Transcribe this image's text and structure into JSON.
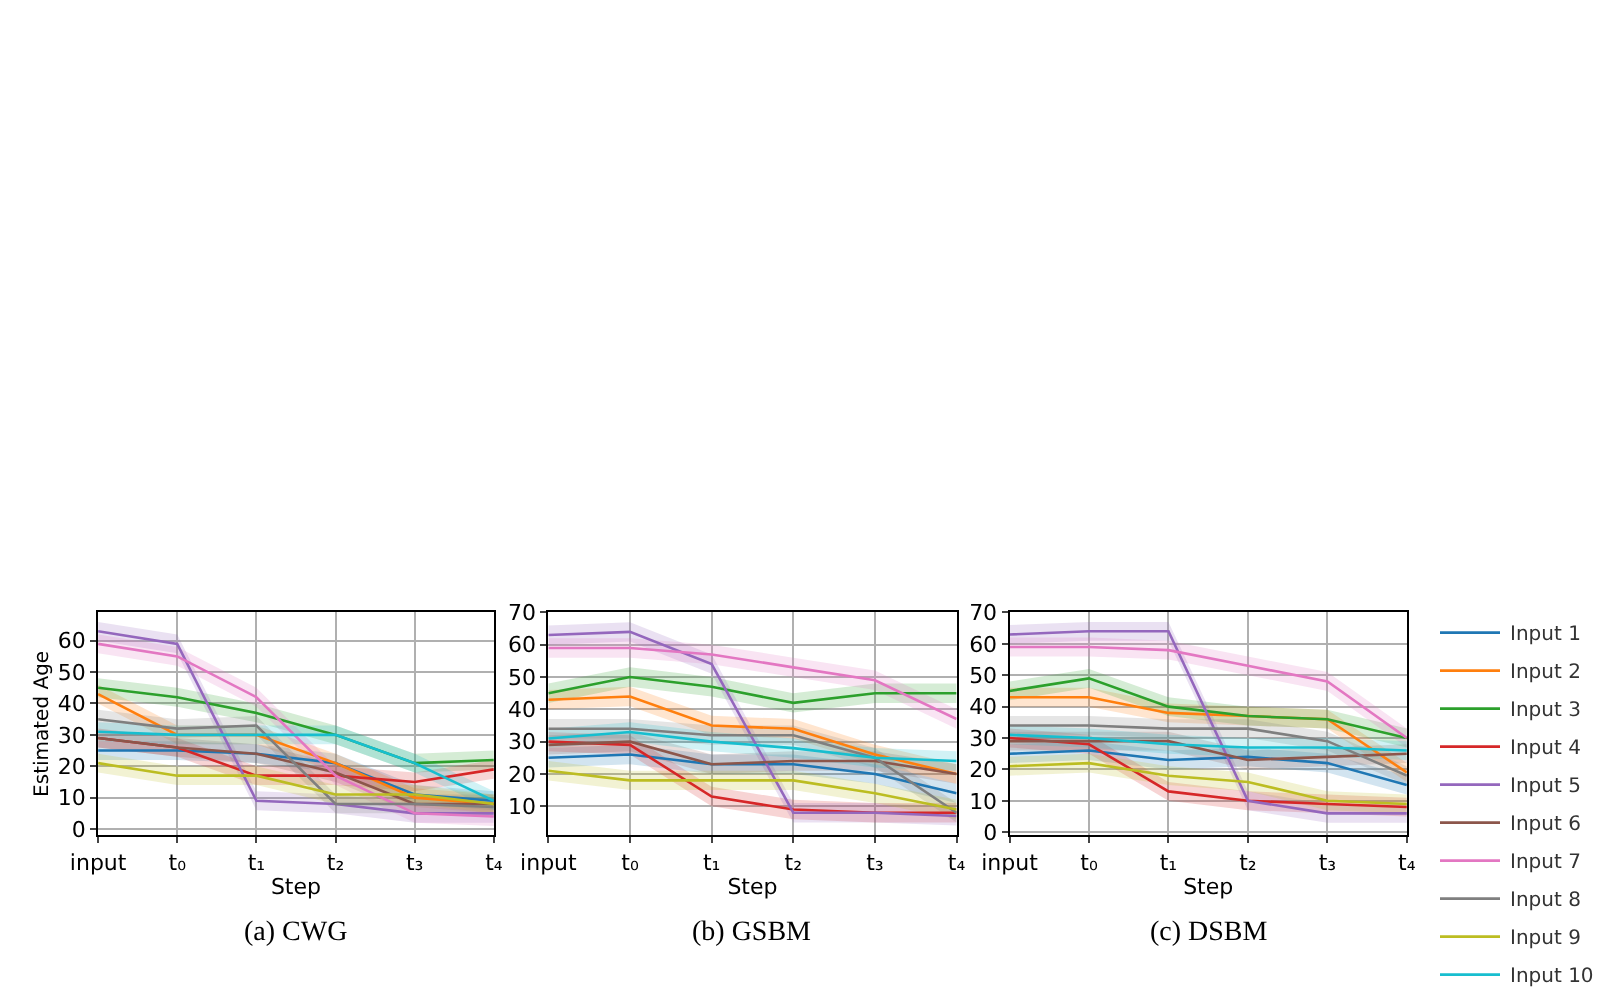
{
  "chart_data": [
    {
      "type": "line",
      "title": "(a) CWG",
      "xlabel": "Step",
      "ylabel": "Estimated Age",
      "categories": [
        "input",
        "t₀",
        "t₁",
        "t₂",
        "t₃",
        "t₄"
      ],
      "ylim": [
        -2,
        69
      ],
      "yticks": [
        0,
        10,
        20,
        30,
        40,
        50,
        60
      ],
      "grid": true,
      "legend": "right",
      "marker": "none",
      "line_style": "solid",
      "series": [
        {
          "name": "Input 1",
          "color": "#1f77b4",
          "values": [
            25,
            25,
            24,
            21,
            11,
            9
          ],
          "lower": [
            22,
            22,
            21,
            18,
            8,
            6
          ],
          "upper": [
            28,
            28,
            27,
            24,
            14,
            12
          ]
        },
        {
          "name": "Input 2",
          "color": "#ff7f0e",
          "values": [
            43,
            30,
            30,
            21,
            10,
            8
          ],
          "lower": [
            40,
            27,
            27,
            18,
            7,
            5
          ],
          "upper": [
            46,
            33,
            33,
            24,
            13,
            11
          ]
        },
        {
          "name": "Input 3",
          "color": "#2ca02c",
          "values": [
            45,
            42,
            37,
            30,
            21,
            22
          ],
          "lower": [
            42,
            39,
            34,
            27,
            18,
            19
          ],
          "upper": [
            48,
            45,
            40,
            33,
            24,
            25
          ]
        },
        {
          "name": "Input 4",
          "color": "#d62728",
          "values": [
            29,
            26,
            17,
            17,
            15,
            19
          ],
          "lower": [
            26,
            23,
            14,
            14,
            12,
            16
          ],
          "upper": [
            32,
            29,
            20,
            20,
            18,
            22
          ]
        },
        {
          "name": "Input 5",
          "color": "#9467bd",
          "values": [
            63,
            59,
            9,
            8,
            5,
            5
          ],
          "lower": [
            60,
            56,
            6,
            5,
            2,
            2
          ],
          "upper": [
            66,
            62,
            12,
            11,
            8,
            8
          ]
        },
        {
          "name": "Input 6",
          "color": "#8c564b",
          "values": [
            29,
            26,
            24,
            18,
            8,
            8
          ],
          "lower": [
            26,
            23,
            21,
            15,
            5,
            5
          ],
          "upper": [
            32,
            29,
            27,
            21,
            11,
            11
          ]
        },
        {
          "name": "Input 7",
          "color": "#e377c2",
          "values": [
            59,
            55,
            42,
            17,
            5,
            4
          ],
          "lower": [
            56,
            52,
            39,
            14,
            2,
            1
          ],
          "upper": [
            62,
            58,
            45,
            20,
            8,
            7
          ]
        },
        {
          "name": "Input 8",
          "color": "#7f7f7f",
          "values": [
            35,
            32,
            33,
            8,
            8,
            7
          ],
          "lower": [
            32,
            29,
            30,
            5,
            5,
            4
          ],
          "upper": [
            38,
            35,
            36,
            11,
            11,
            10
          ]
        },
        {
          "name": "Input 9",
          "color": "#bcbd22",
          "values": [
            21,
            17,
            17,
            11,
            11,
            8
          ],
          "lower": [
            18,
            14,
            14,
            8,
            8,
            5
          ],
          "upper": [
            24,
            20,
            20,
            14,
            14,
            11
          ]
        },
        {
          "name": "Input 10",
          "color": "#17becf",
          "values": [
            31,
            30,
            30,
            30,
            21,
            9
          ],
          "lower": [
            28,
            27,
            27,
            27,
            18,
            6
          ],
          "upper": [
            34,
            33,
            33,
            33,
            24,
            12
          ]
        }
      ]
    },
    {
      "type": "line",
      "title": "(b) GSBM",
      "xlabel": "Step",
      "categories": [
        "input",
        "t₀",
        "t₁",
        "t₂",
        "t₃",
        "t₄"
      ],
      "ylim": [
        1,
        70
      ],
      "yticks": [
        10,
        20,
        30,
        40,
        50,
        60,
        70
      ],
      "grid": true,
      "legend": false,
      "marker": "none",
      "line_style": "solid",
      "series": [
        {
          "color": "#1f77b4",
          "values": [
            25,
            26,
            23,
            23,
            20,
            14
          ],
          "lower": [
            22,
            23,
            20,
            20,
            17,
            11
          ],
          "upper": [
            28,
            29,
            26,
            26,
            23,
            17
          ]
        },
        {
          "color": "#ff7f0e",
          "values": [
            43,
            44,
            35,
            34,
            26,
            20
          ],
          "lower": [
            40,
            41,
            32,
            31,
            23,
            17
          ],
          "upper": [
            46,
            47,
            38,
            37,
            29,
            23
          ]
        },
        {
          "color": "#2ca02c",
          "values": [
            45,
            50,
            47,
            42,
            45,
            45
          ],
          "lower": [
            42,
            47,
            44,
            39,
            42,
            42
          ],
          "upper": [
            48,
            53,
            50,
            45,
            48,
            48
          ]
        },
        {
          "color": "#d62728",
          "values": [
            30,
            29,
            13,
            9,
            8,
            8
          ],
          "lower": [
            27,
            26,
            10,
            6,
            5,
            5
          ],
          "upper": [
            33,
            32,
            16,
            12,
            11,
            11
          ]
        },
        {
          "color": "#9467bd",
          "values": [
            63,
            64,
            54,
            8,
            8,
            7
          ],
          "lower": [
            60,
            61,
            51,
            5,
            5,
            4
          ],
          "upper": [
            66,
            67,
            57,
            11,
            11,
            10
          ]
        },
        {
          "color": "#8c564b",
          "values": [
            29,
            30,
            23,
            24,
            24,
            20
          ],
          "lower": [
            26,
            27,
            20,
            21,
            21,
            17
          ],
          "upper": [
            32,
            33,
            26,
            27,
            27,
            23
          ]
        },
        {
          "color": "#e377c2",
          "values": [
            59,
            59,
            57,
            53,
            49,
            37
          ],
          "lower": [
            56,
            56,
            54,
            50,
            46,
            34
          ],
          "upper": [
            62,
            62,
            60,
            56,
            52,
            40
          ]
        },
        {
          "color": "#7f7f7f",
          "values": [
            34,
            34,
            32,
            32,
            25,
            8
          ],
          "lower": [
            31,
            31,
            29,
            29,
            22,
            5
          ],
          "upper": [
            37,
            37,
            35,
            35,
            28,
            11
          ]
        },
        {
          "color": "#bcbd22",
          "values": [
            21,
            18,
            18,
            18,
            14,
            9
          ],
          "lower": [
            18,
            15,
            15,
            15,
            11,
            6
          ],
          "upper": [
            24,
            21,
            21,
            21,
            17,
            12
          ]
        },
        {
          "color": "#17becf",
          "values": [
            31,
            33,
            30,
            28,
            25,
            24
          ],
          "lower": [
            28,
            30,
            27,
            25,
            22,
            21
          ],
          "upper": [
            34,
            36,
            33,
            31,
            28,
            27
          ]
        }
      ]
    },
    {
      "type": "line",
      "title": "(c) DSBM",
      "xlabel": "Step",
      "categories": [
        "input",
        "t₀",
        "t₁",
        "t₂",
        "t₃",
        "t₄"
      ],
      "ylim": [
        -1,
        70
      ],
      "yticks": [
        0,
        10,
        20,
        30,
        40,
        50,
        60,
        70
      ],
      "grid": true,
      "legend": false,
      "marker": "none",
      "line_style": "solid",
      "series": [
        {
          "color": "#1f77b4",
          "values": [
            25,
            26,
            23,
            24,
            22,
            15
          ],
          "lower": [
            22,
            23,
            20,
            21,
            19,
            12
          ],
          "upper": [
            28,
            29,
            26,
            27,
            25,
            18
          ]
        },
        {
          "color": "#ff7f0e",
          "values": [
            43,
            43,
            38,
            37,
            36,
            19
          ],
          "lower": [
            40,
            40,
            35,
            34,
            33,
            16
          ],
          "upper": [
            46,
            46,
            41,
            40,
            39,
            22
          ]
        },
        {
          "color": "#2ca02c",
          "values": [
            45,
            49,
            40,
            37,
            36,
            30
          ],
          "lower": [
            42,
            46,
            37,
            34,
            33,
            27
          ],
          "upper": [
            48,
            52,
            43,
            40,
            39,
            33
          ]
        },
        {
          "color": "#d62728",
          "values": [
            30,
            28,
            13,
            10,
            9,
            8
          ],
          "lower": [
            27,
            25,
            10,
            7,
            6,
            5
          ],
          "upper": [
            33,
            31,
            16,
            13,
            12,
            11
          ]
        },
        {
          "color": "#9467bd",
          "values": [
            63,
            64,
            64,
            10,
            6,
            6
          ],
          "lower": [
            60,
            61,
            61,
            7,
            3,
            3
          ],
          "upper": [
            66,
            67,
            67,
            13,
            9,
            9
          ]
        },
        {
          "color": "#8c564b",
          "values": [
            29,
            29,
            29,
            23,
            24,
            25
          ],
          "lower": [
            26,
            26,
            26,
            20,
            21,
            22
          ],
          "upper": [
            32,
            32,
            32,
            26,
            27,
            28
          ]
        },
        {
          "color": "#e377c2",
          "values": [
            59,
            59,
            58,
            53,
            48,
            30
          ],
          "lower": [
            56,
            56,
            55,
            50,
            45,
            27
          ],
          "upper": [
            62,
            62,
            61,
            56,
            51,
            33
          ]
        },
        {
          "color": "#7f7f7f",
          "values": [
            34,
            34,
            33,
            33,
            29,
            18
          ],
          "lower": [
            31,
            31,
            30,
            30,
            26,
            15
          ],
          "upper": [
            37,
            37,
            36,
            36,
            32,
            21
          ]
        },
        {
          "color": "#bcbd22",
          "values": [
            21,
            22,
            18,
            16,
            10,
            9
          ],
          "lower": [
            18,
            19,
            15,
            13,
            7,
            6
          ],
          "upper": [
            24,
            25,
            21,
            19,
            13,
            12
          ]
        },
        {
          "color": "#17becf",
          "values": [
            31,
            30,
            28,
            27,
            27,
            26
          ],
          "lower": [
            28,
            27,
            25,
            24,
            24,
            23
          ],
          "upper": [
            34,
            33,
            31,
            30,
            30,
            29
          ]
        }
      ]
    }
  ]
}
